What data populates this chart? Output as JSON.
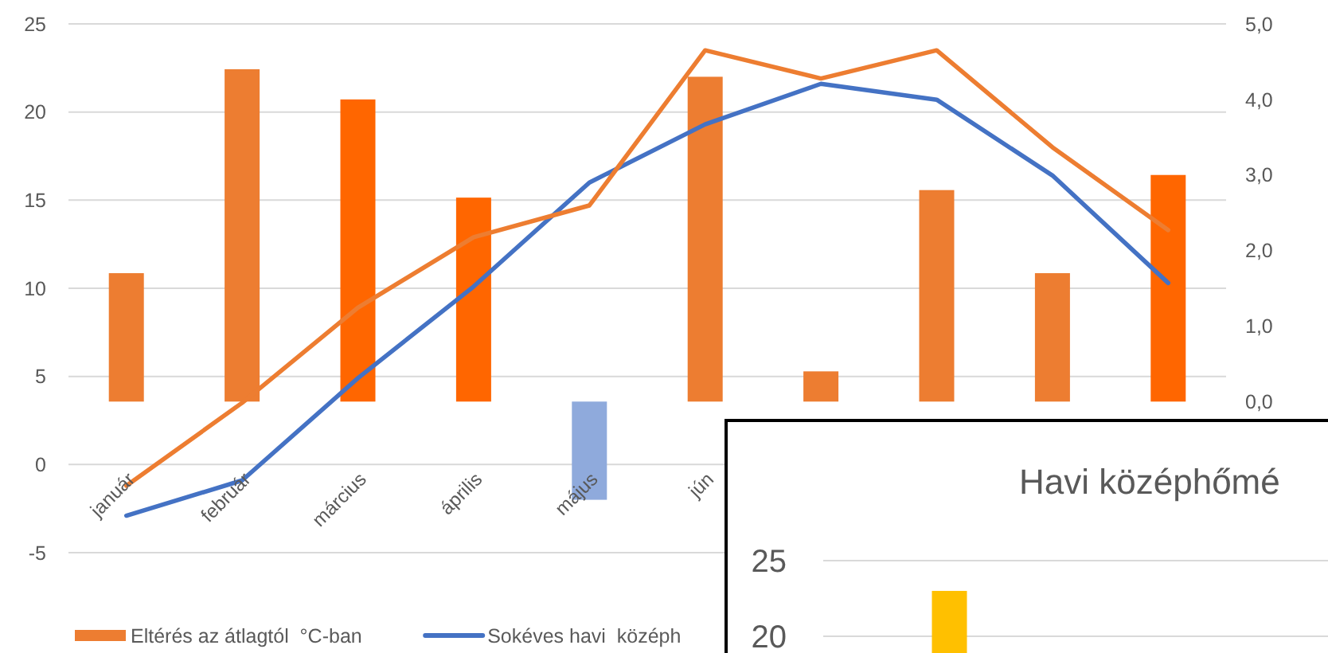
{
  "chart_data": [
    {
      "type": "bar",
      "categories": [
        "január",
        "február",
        "március",
        "április",
        "május",
        "jún",
        null,
        null,
        null,
        null
      ],
      "series": [
        {
          "name": "Eltérés az átlagtól  °C-ban",
          "color": "#ed7d31",
          "colors": [
            "#ed7d31",
            "#ed7d31",
            "#ff6600",
            "#ff6600",
            "#8faadc",
            "#ed7d31",
            "#ed7d31",
            "#ed7d31",
            "#ed7d31",
            "#ff6600"
          ],
          "values": [
            1.7,
            4.4,
            4.0,
            2.7,
            -1.3,
            4.3,
            0.4,
            2.8,
            1.7,
            3.0
          ],
          "axis": "y2"
        },
        {
          "type": "line",
          "name": "Sokéves havi  középh",
          "color": "#4472c4",
          "values": [
            -2.9,
            -0.9,
            4.9,
            10.1,
            16.0,
            19.3,
            21.6,
            20.7,
            16.4,
            10.3
          ]
        },
        {
          "type": "line",
          "color": "#ed7d31",
          "values": [
            -1.2,
            3.5,
            8.9,
            12.9,
            14.7,
            23.5,
            21.9,
            23.5,
            18.0,
            13.3
          ]
        }
      ],
      "ylim": [
        -5,
        25
      ],
      "yticks": [
        -5,
        0,
        5,
        10,
        15,
        20,
        25
      ],
      "y2lim": [
        -2,
        5
      ],
      "y2ticks": [
        {
          "value": 0,
          "label": "0,0"
        },
        {
          "value": 1,
          "label": "1,0"
        },
        {
          "value": 2,
          "label": "2,0"
        },
        {
          "value": 3,
          "label": "3,0"
        },
        {
          "value": 4,
          "label": "4,0"
        },
        {
          "value": 5,
          "label": "5,0"
        }
      ],
      "grid": "y",
      "legend": "bottom"
    },
    {
      "type": "bar",
      "title": "Havi középhőmé",
      "categories": [
        null,
        null
      ],
      "values": [
        23,
        null
      ],
      "color": "#ffc000",
      "ylim": [
        18.9,
        25
      ],
      "yticks": [
        20,
        25
      ],
      "grid": "y"
    }
  ]
}
